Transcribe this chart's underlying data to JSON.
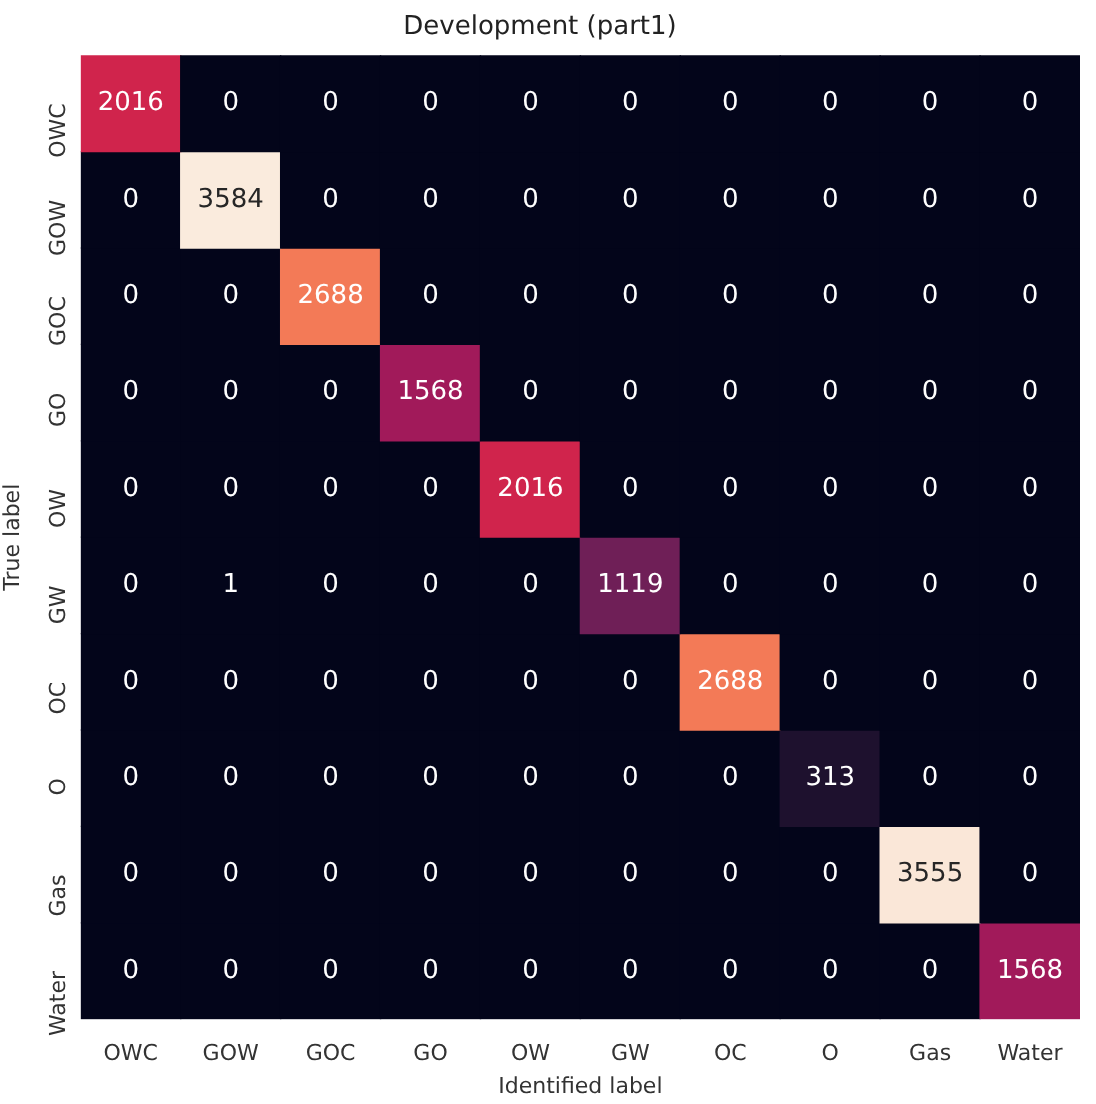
{
  "chart_data": {
    "type": "heatmap",
    "title": "Development (part1)",
    "xlabel": "Identified label",
    "ylabel": "True label",
    "categories": [
      "OWC",
      "GOW",
      "GOC",
      "GO",
      "OW",
      "GW",
      "OC",
      "O",
      "Gas",
      "Water"
    ],
    "y_categories": [
      "OWC",
      "GOW",
      "GOC",
      "GO",
      "OW",
      "GW",
      "OC",
      "O",
      "Gas",
      "Water"
    ],
    "data_labels": true,
    "cells": [
      [
        2016,
        0,
        0,
        0,
        0,
        0,
        0,
        0,
        0,
        0
      ],
      [
        0,
        3584,
        0,
        0,
        0,
        0,
        0,
        0,
        0,
        0
      ],
      [
        0,
        0,
        2688,
        0,
        0,
        0,
        0,
        0,
        0,
        0
      ],
      [
        0,
        0,
        0,
        1568,
        0,
        0,
        0,
        0,
        0,
        0
      ],
      [
        0,
        0,
        0,
        0,
        2016,
        0,
        0,
        0,
        0,
        0
      ],
      [
        0,
        1,
        0,
        0,
        0,
        1119,
        0,
        0,
        0,
        0
      ],
      [
        0,
        0,
        0,
        0,
        0,
        0,
        2688,
        0,
        0,
        0
      ],
      [
        0,
        0,
        0,
        0,
        0,
        0,
        0,
        313,
        0,
        0
      ],
      [
        0,
        0,
        0,
        0,
        0,
        0,
        0,
        0,
        3555,
        0
      ],
      [
        0,
        0,
        0,
        0,
        0,
        0,
        0,
        0,
        0,
        1568
      ]
    ]
  }
}
